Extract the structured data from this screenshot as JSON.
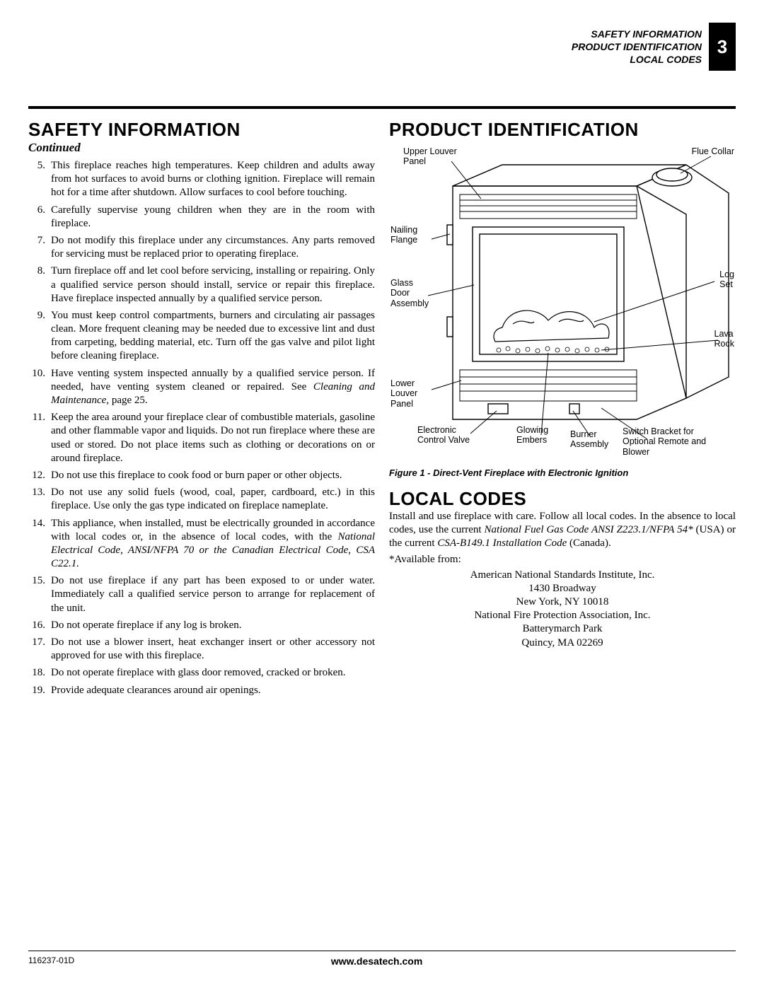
{
  "header": {
    "line1": "SAFETY INFORMATION",
    "line2": "PRODUCT IDENTIFICATION",
    "line3": "LOCAL CODES",
    "page_number": "3"
  },
  "safety": {
    "heading": "SAFETY INFORMATION",
    "continued": "Continued",
    "items": [
      {
        "num": "5.",
        "text": "This fireplace reaches high temperatures. Keep children and adults away from hot surfaces to avoid burns or clothing ignition. Fireplace will remain hot for a time after shutdown. Allow surfaces to cool before touching."
      },
      {
        "num": "6.",
        "text": "Carefully supervise young children when they are in the room with fireplace."
      },
      {
        "num": "7.",
        "text": "Do not modify this fireplace under any circumstances. Any parts removed for servicing must be replaced prior to operating fireplace."
      },
      {
        "num": "8.",
        "text": "Turn fireplace off and let cool before servicing, installing or repairing. Only a qualified service person should install, service or repair this fireplace. Have fireplace inspected annually by a qualified service person."
      },
      {
        "num": "9.",
        "text": "You must keep control compartments, burners and circulating air passages clean. More frequent cleaning may be needed due to excessive lint and dust from carpeting, bedding material, etc. Turn off the gas valve and pilot light before cleaning fireplace."
      },
      {
        "num": "10.",
        "text": "Have venting system inspected annually by a qualified service person. If needed, have venting system cleaned or repaired. See <span class=\"italic\">Cleaning and Maintenance,</span> page 25."
      },
      {
        "num": "11.",
        "text": "Keep the area around your fireplace clear of combustible materials, gasoline and other flammable vapor and liquids. Do not run fireplace where these are used or stored. Do not place items such as clothing or decorations on or around fireplace."
      },
      {
        "num": "12.",
        "text": "Do not use this fireplace to cook food or burn paper or other objects."
      },
      {
        "num": "13.",
        "text": "Do not use any solid fuels (wood, coal, paper, cardboard, etc.) in this fireplace. Use only the gas type indicated on fireplace nameplate."
      },
      {
        "num": "14.",
        "text": "This appliance, when installed, must be electrically grounded in accordance with local codes or, in the absence of local codes, with the <span class=\"italic\">National Electrical Code, ANSI/NFPA 70 or the Canadian Electrical Code, CSA C22.1.</span>"
      },
      {
        "num": "15.",
        "text": "Do not use fireplace if any part has been exposed to or under water. Immediately call a qualified service person to arrange for replacement of the unit."
      },
      {
        "num": "16.",
        "text": "Do not operate fireplace if any log is broken."
      },
      {
        "num": "17.",
        "text": "Do not use a blower insert, heat exchanger insert or other accessory not approved for use with this fireplace."
      },
      {
        "num": "18.",
        "text": "Do not operate fireplace with glass door removed, cracked or broken."
      },
      {
        "num": "19.",
        "text": "Provide adequate clearances around air openings."
      }
    ]
  },
  "product": {
    "heading": "PRODUCT IDENTIFICATION",
    "labels": {
      "upper_louver": "Upper Louver\nPanel",
      "flue_collar": "Flue Collar",
      "nailing_flange": "Nailing\nFlange",
      "glass_door": "Glass\nDoor\nAssembly",
      "lower_louver": "Lower\nLouver\nPanel",
      "electronic_valve": "Electronic\nControl Valve",
      "glowing_embers": "Glowing\nEmbers",
      "burner": "Burner\nAssembly",
      "switch_bracket": "Switch Bracket for\nOptional Remote and\nBlower",
      "log_set": "Log\nSet",
      "lava_rock": "Lava\nRock"
    },
    "figure_caption": "Figure 1 - Direct-Vent Fireplace with Electronic Ignition"
  },
  "local_codes": {
    "heading": "LOCAL CODES",
    "body": "Install and use fireplace with care. Follow all local codes. In the absence to local codes, use the current <span class=\"italic\">National Fuel Gas Code ANSI Z223.1/NFPA 54*</span> (USA) or the current <span class=\"italic\">CSA-B149.1 Installation Code</span> (Canada).",
    "available": "*Available from:",
    "addresses": "American National Standards Institute, Inc.<br>1430 Broadway<br>New York, NY 10018<br>National Fire Protection Association, Inc.<br>Batterymarch Park<br>Quincy, MA 02269"
  },
  "footer": {
    "doc_id": "116237-01D",
    "url": "www.desatech.com"
  },
  "colors": {
    "text": "#000000",
    "background": "#ffffff",
    "page_badge_bg": "#000000",
    "page_badge_fg": "#ffffff",
    "rule": "#000000",
    "diagram_stroke": "#000000",
    "diagram_fill": "#ffffff"
  },
  "typography": {
    "body_font": "Georgia, Times New Roman, serif",
    "heading_font": "Arial, Helvetica, sans-serif",
    "body_size_pt": 11,
    "heading_size_pt": 20,
    "label_size_pt": 9
  }
}
